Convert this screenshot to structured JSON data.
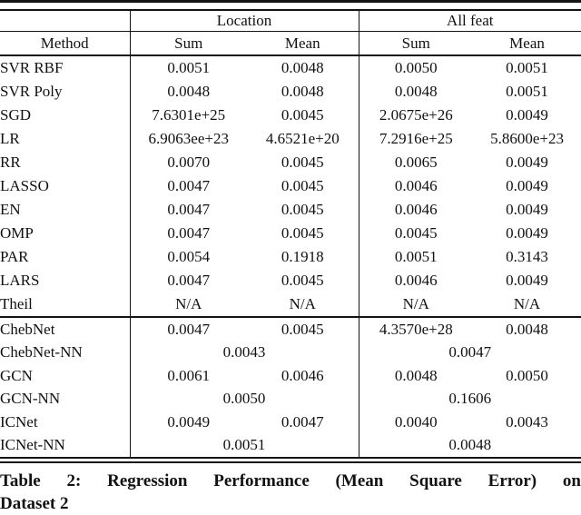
{
  "chart_data": {
    "type": "table",
    "title": "Table 2: Regression Performance (Mean Square Error) on Dataset 2",
    "column_groups": [
      "Location",
      "All feat"
    ],
    "columns": [
      "Method",
      "Sum",
      "Mean",
      "Sum",
      "Mean"
    ],
    "sections": [
      {
        "name": "classic-regressors",
        "rows": [
          {
            "method": "SVR RBF",
            "cells": [
              {
                "text": "0.0051"
              },
              {
                "text": "0.0048"
              },
              {
                "text": "0.0050"
              },
              {
                "text": "0.0051"
              }
            ]
          },
          {
            "method": "SVR Poly",
            "cells": [
              {
                "text": "0.0048"
              },
              {
                "text": "0.0048"
              },
              {
                "text": "0.0048"
              },
              {
                "text": "0.0051"
              }
            ]
          },
          {
            "method": "SGD",
            "cells": [
              {
                "text": "7.6301e+25"
              },
              {
                "text": "0.0045"
              },
              {
                "text": "2.0675e+26"
              },
              {
                "text": "0.0049"
              }
            ]
          },
          {
            "method": "LR",
            "cells": [
              {
                "text": "6.9063ee+23"
              },
              {
                "text": "4.6521e+20"
              },
              {
                "text": "7.2916e+25"
              },
              {
                "text": "5.8600e+23"
              }
            ]
          },
          {
            "method": "RR",
            "cells": [
              {
                "text": "0.0070"
              },
              {
                "text": "0.0045"
              },
              {
                "text": "0.0065"
              },
              {
                "text": "0.0049"
              }
            ]
          },
          {
            "method": "LASSO",
            "cells": [
              {
                "text": "0.0047"
              },
              {
                "text": "0.0045"
              },
              {
                "text": "0.0046"
              },
              {
                "text": "0.0049"
              }
            ]
          },
          {
            "method": "EN",
            "cells": [
              {
                "text": "0.0047"
              },
              {
                "text": "0.0045"
              },
              {
                "text": "0.0046"
              },
              {
                "text": "0.0049"
              }
            ]
          },
          {
            "method": "OMP",
            "cells": [
              {
                "text": "0.0047"
              },
              {
                "text": "0.0045"
              },
              {
                "text": "0.0045"
              },
              {
                "text": "0.0049"
              }
            ]
          },
          {
            "method": "PAR",
            "cells": [
              {
                "text": "0.0054"
              },
              {
                "text": "0.1918"
              },
              {
                "text": "0.0051"
              },
              {
                "text": "0.3143"
              }
            ]
          },
          {
            "method": "LARS",
            "cells": [
              {
                "text": "0.0047"
              },
              {
                "text": "0.0045"
              },
              {
                "text": "0.0046"
              },
              {
                "text": "0.0049"
              }
            ]
          },
          {
            "method": "Theil",
            "cells": [
              {
                "text": "N/A"
              },
              {
                "text": "N/A"
              },
              {
                "text": "N/A"
              },
              {
                "text": "N/A"
              }
            ]
          }
        ]
      },
      {
        "name": "graph-networks",
        "rows": [
          {
            "method": "ChebNet",
            "cells": [
              {
                "text": "0.0047"
              },
              {
                "text": "0.0045"
              },
              {
                "text": "4.3570e+28"
              },
              {
                "text": "0.0048"
              }
            ]
          },
          {
            "method": "ChebNet-NN",
            "cells": [
              {
                "text": "0.0043",
                "span": 2,
                "bold": true
              },
              {
                "text": "0.0047",
                "span": 2
              }
            ]
          },
          {
            "method": "GCN",
            "cells": [
              {
                "text": "0.0061"
              },
              {
                "text": "0.0046"
              },
              {
                "text": "0.0048"
              },
              {
                "text": "0.0050"
              }
            ]
          },
          {
            "method": "GCN-NN",
            "cells": [
              {
                "text": "0.0050",
                "span": 2
              },
              {
                "text": "0.1606",
                "span": 2
              }
            ]
          },
          {
            "method": "ICNet",
            "cells": [
              {
                "text": "0.0049"
              },
              {
                "text": "0.0047"
              },
              {
                "text": "0.0040",
                "bold": true
              },
              {
                "text": "0.0043"
              }
            ]
          },
          {
            "method": "ICNet-NN",
            "cells": [
              {
                "text": "0.0051",
                "span": 2
              },
              {
                "text": "0.0048",
                "span": 2
              }
            ]
          }
        ]
      }
    ]
  },
  "caption": {
    "line1": "Table 2: Regression Performance (Mean Square Error) on",
    "line2": "Dataset 2"
  },
  "colors": {
    "text": "#111111",
    "rule": "#141414",
    "background": "#ffffff"
  }
}
